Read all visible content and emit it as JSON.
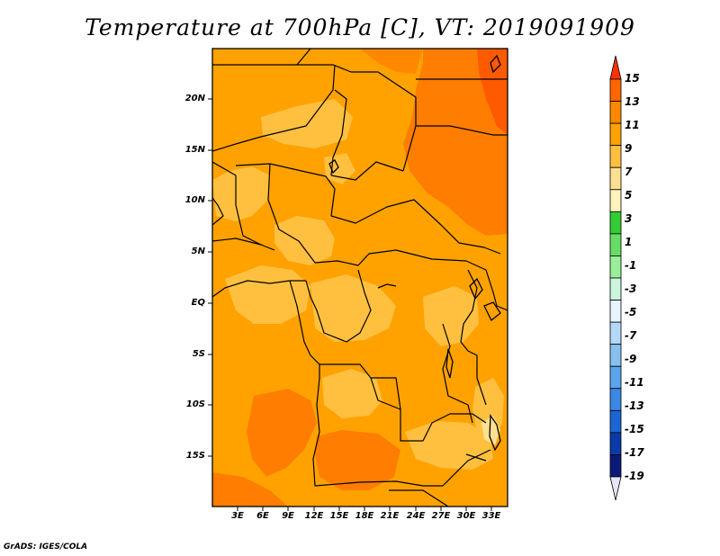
{
  "title": "Temperature at 700hPa [C], VT: 2019091909",
  "credit": "GrADS: IGES/COLA",
  "map": {
    "lat_labels": [
      "20N",
      "15N",
      "10N",
      "5N",
      "EQ",
      "5S",
      "10S",
      "15S"
    ],
    "lon_labels": [
      "3E",
      "6E",
      "9E",
      "12E",
      "15E",
      "18E",
      "21E",
      "24E",
      "27E",
      "30E",
      "33E"
    ]
  },
  "colorbar": {
    "labels": [
      "15",
      "13",
      "11",
      "9",
      "7",
      "5",
      "3",
      "1",
      "-1",
      "-3",
      "-5",
      "-7",
      "-9",
      "-11",
      "-13",
      "-15",
      "-17",
      "-19"
    ],
    "colors": [
      "#ff3300",
      "#ff6600",
      "#ff8800",
      "#ffa200",
      "#ffc040",
      "#ffe090",
      "#fff4bb",
      "#33cc33",
      "#66dd66",
      "#99ee99",
      "#ccf5dd",
      "#e8f4ff",
      "#b4d8f8",
      "#88c0f0",
      "#5aa4ec",
      "#3a88e4",
      "#1c66d4",
      "#0a3aa8",
      "#0a1a78",
      "#e6e6f4"
    ]
  }
}
